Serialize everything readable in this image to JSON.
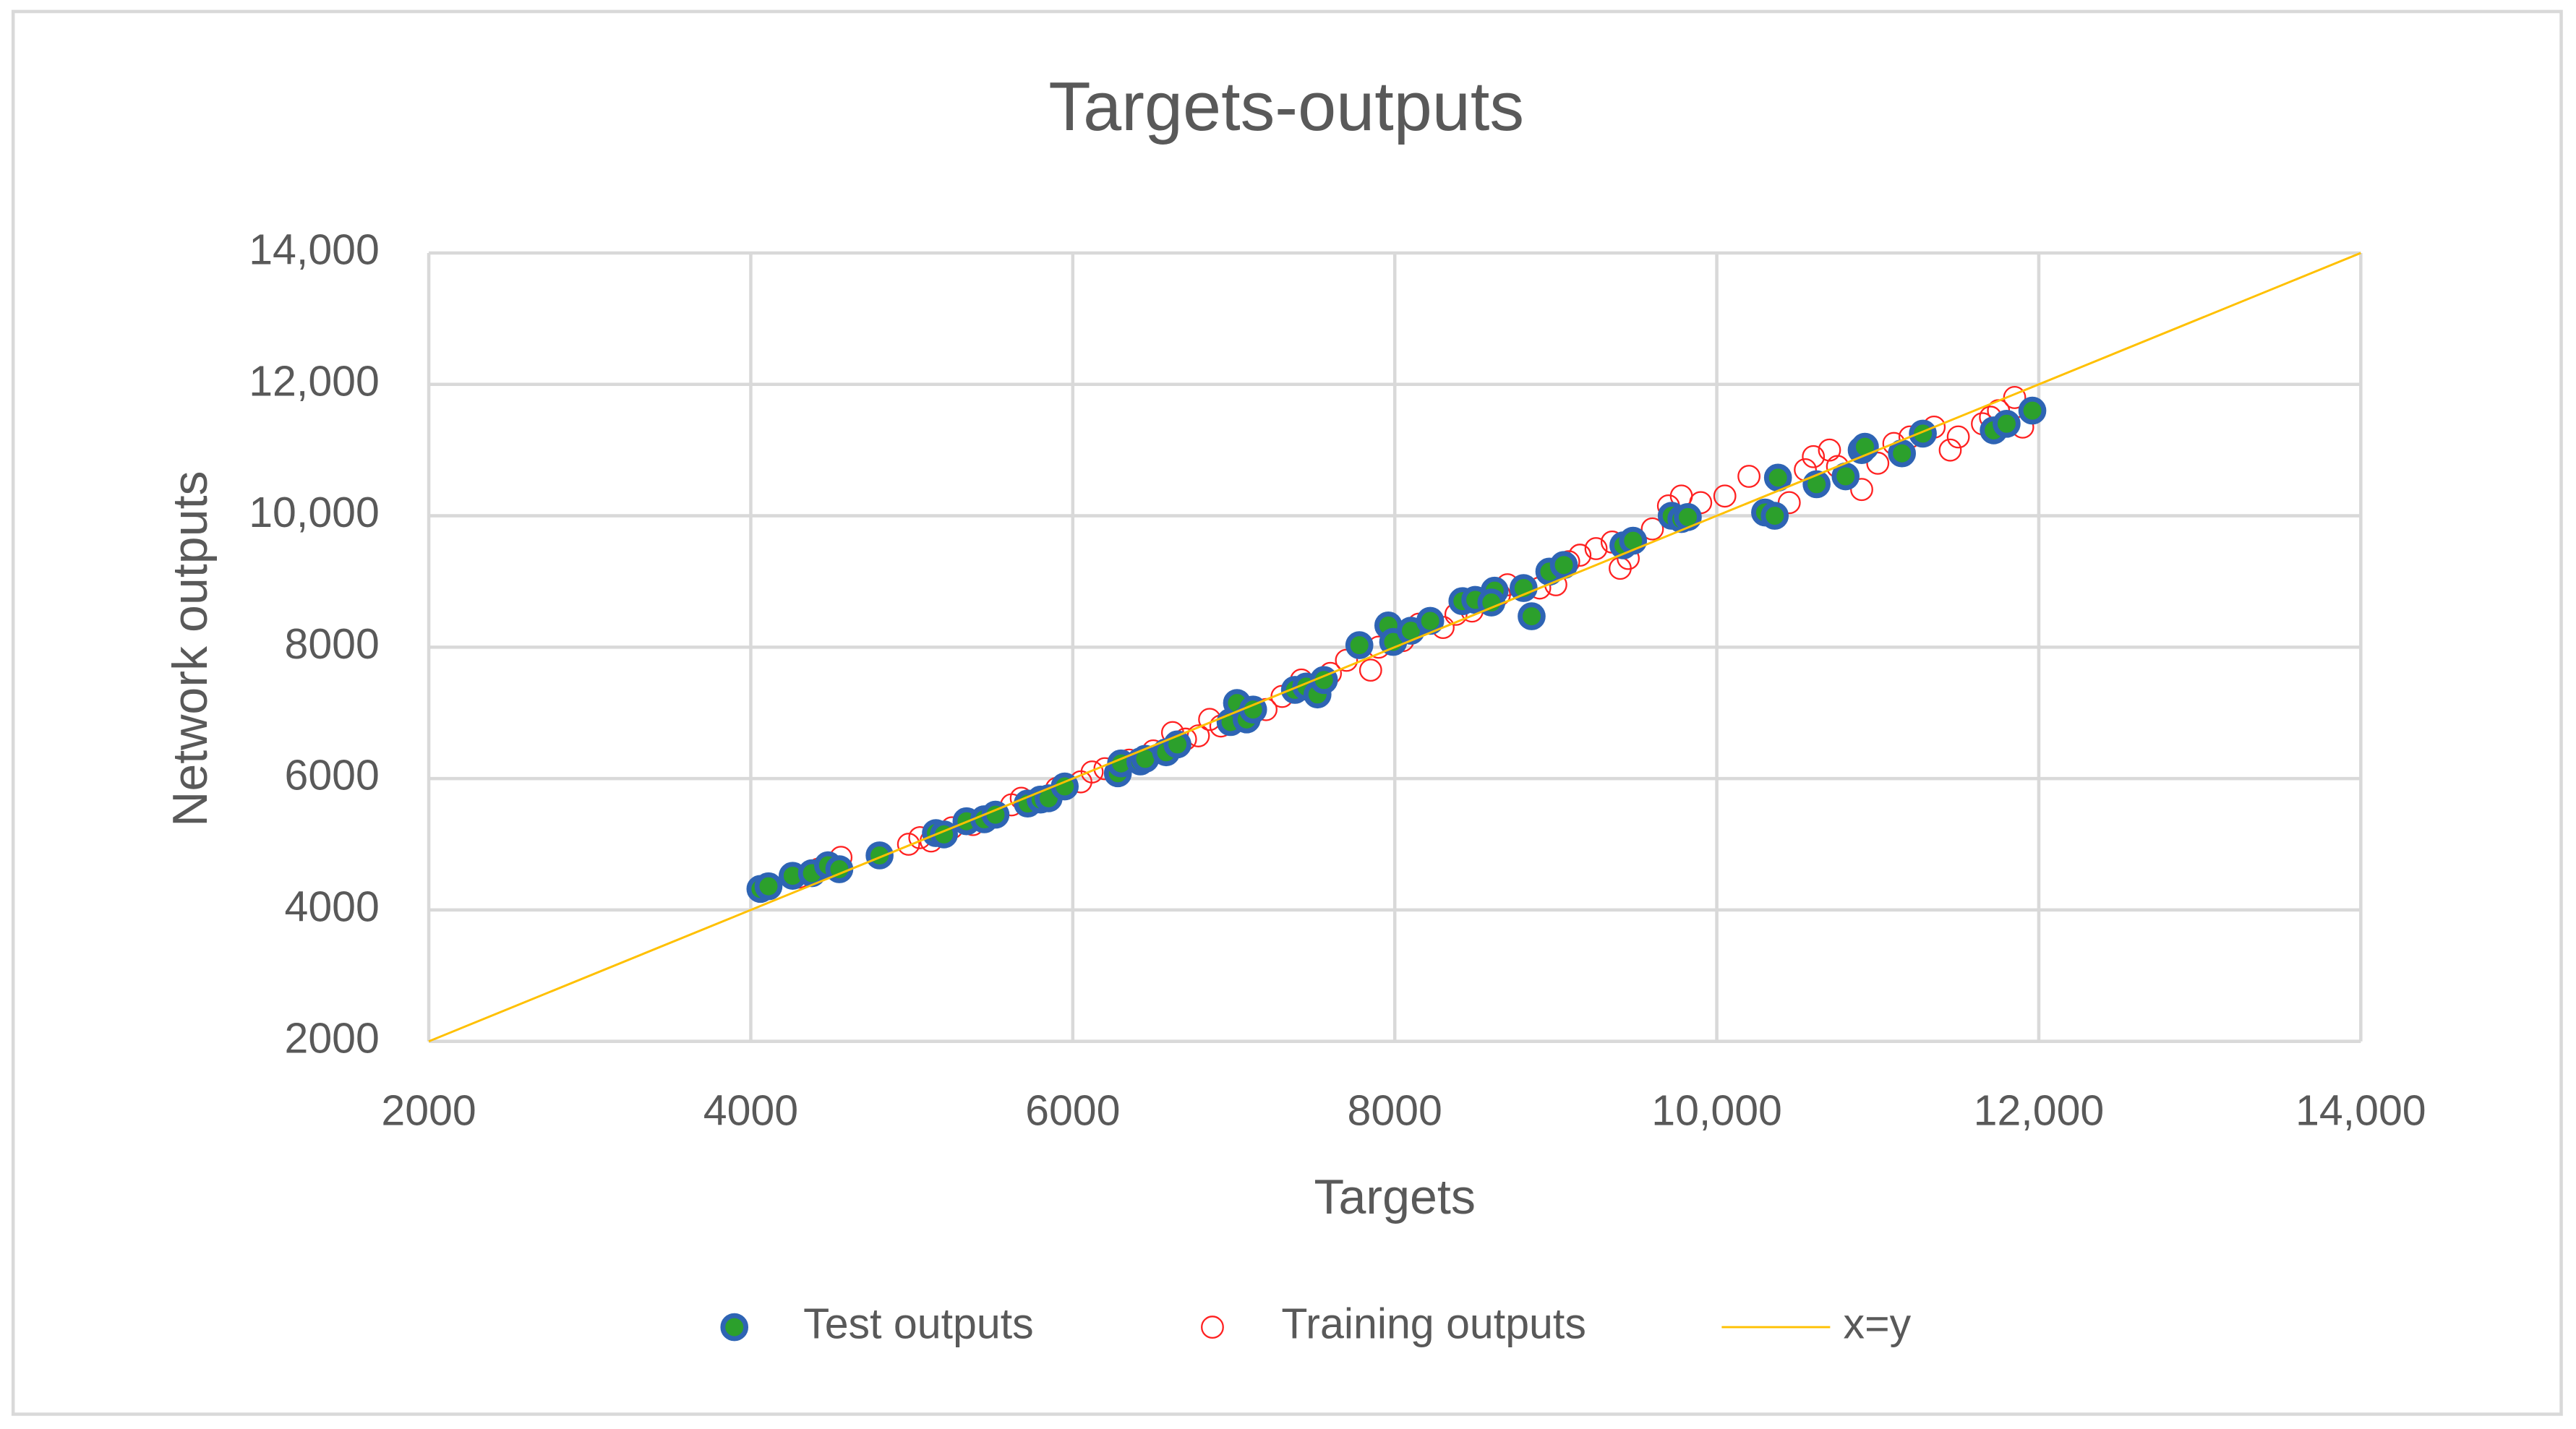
{
  "chart_data": {
    "type": "scatter",
    "title": "Targets-outputs",
    "xlabel": "Targets",
    "ylabel": "Network outputs",
    "xlim": [
      2000,
      14000
    ],
    "ylim": [
      2000,
      14000
    ],
    "xticks": [
      2000,
      4000,
      6000,
      8000,
      {
        "value": 10000,
        "label": "10,000"
      },
      {
        "value": 12000,
        "label": "12,000"
      },
      {
        "value": 14000,
        "label": "14,000"
      }
    ],
    "yticks": [
      2000,
      4000,
      6000,
      8000,
      {
        "value": 10000,
        "label": "10,000"
      },
      {
        "value": 12000,
        "label": "12,000"
      },
      {
        "value": 14000,
        "label": "14,000"
      }
    ],
    "grid": true,
    "legend": "bottom",
    "series": [
      {
        "name": "Test outputs",
        "color": "#2ca02c",
        "edgecolor": "#2e64b4",
        "marker": "filled",
        "x": [
          4060,
          4110,
          4260,
          4380,
          4480,
          4550,
          4800,
          5150,
          5200,
          5340,
          5450,
          5520,
          5720,
          5800,
          5850,
          5950,
          6280,
          6300,
          6420,
          6450,
          6580,
          6650,
          6980,
          7020,
          7080,
          7120,
          7380,
          7450,
          7520,
          7560,
          7780,
          7960,
          7990,
          8100,
          8220,
          8420,
          8500,
          8620,
          8600,
          8800,
          8850,
          8960,
          9050,
          9420,
          9480,
          9720,
          9780,
          9820,
          10300,
          10360,
          10380,
          10620,
          10800,
          10900,
          10920,
          11150,
          11280,
          11720,
          11800,
          11960
        ],
        "values": [
          4320,
          4360,
          4520,
          4560,
          4680,
          4620,
          4830,
          5170,
          5150,
          5350,
          5380,
          5450,
          5620,
          5680,
          5700,
          5880,
          6080,
          6230,
          6260,
          6300,
          6400,
          6520,
          6860,
          7150,
          6900,
          7050,
          7350,
          7400,
          7280,
          7500,
          8030,
          8330,
          8080,
          8250,
          8400,
          8700,
          8720,
          8860,
          8680,
          8900,
          8470,
          9150,
          9250,
          9550,
          9620,
          10000,
          9950,
          9980,
          10050,
          10000,
          10580,
          10480,
          10600,
          11000,
          11050,
          10950,
          11250,
          11300,
          11400,
          11600
        ]
      },
      {
        "name": "Training outputs",
        "color": "#ff2020",
        "marker": "hollow",
        "x": [
          4100,
          4300,
          4420,
          4560,
          4980,
          5050,
          5120,
          5250,
          5380,
          5480,
          5620,
          5680,
          5900,
          6050,
          6120,
          6200,
          6350,
          6500,
          6620,
          6700,
          6780,
          6850,
          6920,
          7050,
          7200,
          7300,
          7420,
          7600,
          7700,
          7850,
          7900,
          8050,
          8150,
          8300,
          8380,
          8480,
          8650,
          8700,
          8900,
          9000,
          9080,
          9150,
          9250,
          9350,
          9400,
          9450,
          9600,
          9700,
          9780,
          9900,
          10050,
          10200,
          10450,
          10550,
          10600,
          10700,
          10750,
          10900,
          11000,
          11100,
          11200,
          11350,
          11450,
          11500,
          11650,
          11700,
          11750,
          11850,
          11900
        ],
        "values": [
          4380,
          4500,
          4620,
          4800,
          5000,
          5100,
          5050,
          5250,
          5300,
          5420,
          5600,
          5700,
          5850,
          5950,
          6100,
          6150,
          6280,
          6420,
          6700,
          6600,
          6650,
          6900,
          6800,
          7000,
          7050,
          7250,
          7500,
          7600,
          7800,
          7650,
          8000,
          8100,
          8350,
          8300,
          8500,
          8550,
          8800,
          8950,
          8900,
          8950,
          9300,
          9400,
          9500,
          9600,
          9200,
          9350,
          9800,
          10150,
          10300,
          10200,
          10300,
          10600,
          10200,
          10700,
          10900,
          11000,
          10750,
          10400,
          10800,
          11100,
          11200,
          11350,
          11000,
          11200,
          11400,
          11500,
          11600,
          11800,
          11350
        ]
      },
      {
        "name": "x=y",
        "color": "#ffc000",
        "marker": "line",
        "x": [
          2000,
          14000
        ],
        "values": [
          2000,
          14000
        ]
      }
    ]
  }
}
